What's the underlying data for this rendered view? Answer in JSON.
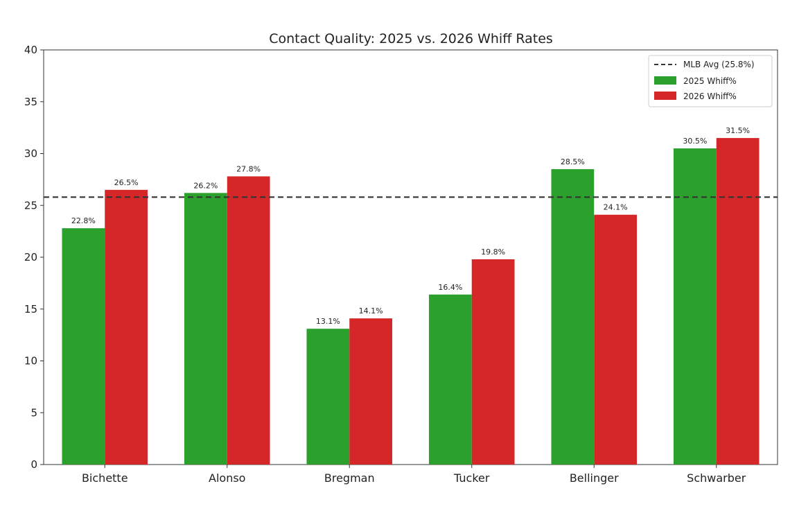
{
  "chart_data": {
    "type": "bar",
    "title": "Contact Quality: 2025 vs. 2026 Whiff Rates",
    "xlabel": "",
    "ylabel": "",
    "categories": [
      "Bichette",
      "Alonso",
      "Bregman",
      "Tucker",
      "Bellinger",
      "Schwarber"
    ],
    "series": [
      {
        "name": "2025 Whiff%",
        "color": "#2ca02c",
        "values": [
          22.8,
          26.2,
          13.1,
          16.4,
          28.5,
          30.5
        ],
        "labels": [
          "22.8%",
          "26.2%",
          "13.1%",
          "16.4%",
          "28.5%",
          "30.5%"
        ]
      },
      {
        "name": "2026 Whiff%",
        "color": "#d62728",
        "values": [
          26.5,
          27.8,
          14.1,
          19.8,
          24.1,
          31.5
        ],
        "labels": [
          "26.5%",
          "27.8%",
          "14.1%",
          "19.8%",
          "24.1%",
          "31.5%"
        ]
      }
    ],
    "reference_line": {
      "name": "MLB Avg (25.8%)",
      "value": 25.8,
      "style": "dashed",
      "color": "#333333"
    },
    "ylim": [
      0,
      40
    ],
    "yticks": [
      0,
      5,
      10,
      15,
      20,
      25,
      30,
      35,
      40
    ],
    "grid": false,
    "legend": "top-right"
  }
}
